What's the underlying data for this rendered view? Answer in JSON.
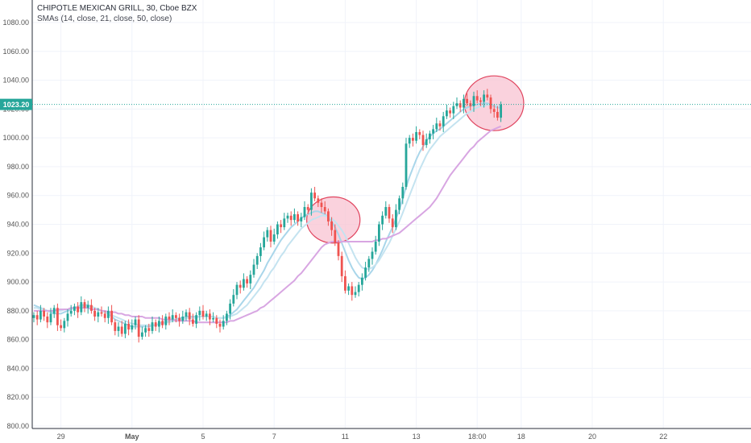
{
  "header": {
    "title": "CHIPOTLE MEXICAN GRILL, 30, Cboe BZX",
    "indicator": "SMAs (14, close, 21, close, 50, close)"
  },
  "last_price_label": "1023.20",
  "colors": {
    "up": "#26a69a",
    "down": "#ef5350",
    "sma14": "#a9d6ea",
    "sma21": "#c4e3f0",
    "sma50": "#d8a6e2",
    "price_line": "#26a69a",
    "highlight_fill": "#f8c3d2",
    "highlight_stroke": "#e0445e"
  },
  "chart_data": {
    "type": "line",
    "title": "CHIPOTLE MEXICAN GRILL, 30, Cboe BZX",
    "xlabel": "",
    "ylabel": "",
    "ylim": [
      798,
      1088
    ],
    "y_ticks": [
      "800.00",
      "820.00",
      "840.00",
      "860.00",
      "880.00",
      "900.00",
      "920.00",
      "940.00",
      "960.00",
      "980.00",
      "1000.00",
      "1020.00",
      "1040.00",
      "1060.00",
      "1080.00"
    ],
    "x_ticks": [
      {
        "label": "29",
        "bar": 8
      },
      {
        "label": "May",
        "bar": 29,
        "bold": true
      },
      {
        "label": "5",
        "bar": 50
      },
      {
        "label": "7",
        "bar": 71
      },
      {
        "label": "11",
        "bar": 92
      },
      {
        "label": "13",
        "bar": 113
      },
      {
        "label": "18:00",
        "bar": 131
      },
      {
        "label": "18",
        "bar": 144
      },
      {
        "label": "20",
        "bar": 165
      },
      {
        "label": "22",
        "bar": 186
      }
    ],
    "grid": true,
    "last_price": 1023.2,
    "close": [
      877,
      874,
      880,
      876,
      872,
      878,
      882,
      870,
      868,
      873,
      878,
      880,
      883,
      879,
      886,
      882,
      884,
      880,
      876,
      879,
      878,
      875,
      880,
      872,
      866,
      869,
      864,
      871,
      867,
      870,
      874,
      862,
      865,
      868,
      866,
      872,
      869,
      873,
      870,
      876,
      874,
      877,
      875,
      873,
      876,
      879,
      874,
      871,
      877,
      880,
      876,
      878,
      874,
      875,
      871,
      869,
      873,
      878,
      885,
      891,
      898,
      896,
      902,
      899,
      905,
      912,
      918,
      924,
      931,
      936,
      928,
      933,
      940,
      938,
      944,
      946,
      943,
      947,
      942,
      945,
      952,
      950,
      962,
      958,
      955,
      952,
      949,
      942,
      936,
      927,
      918,
      904,
      894,
      897,
      891,
      893,
      898,
      903,
      910,
      916,
      921,
      928,
      940,
      946,
      952,
      944,
      938,
      950,
      958,
      966,
      996,
      1000,
      998,
      1004,
      1002,
      995,
      999,
      1003,
      1006,
      1010,
      1008,
      1015,
      1019,
      1017,
      1022,
      1024,
      1021,
      1027,
      1024,
      1022,
      1029,
      1026,
      1025,
      1030,
      1028,
      1020,
      1018,
      1014,
      1023.2
    ],
    "range": [
      0,
      0,
      0,
      0,
      0,
      0,
      0,
      0,
      0,
      0,
      0,
      0,
      0,
      0,
      0,
      0,
      0,
      0,
      0,
      0,
      0,
      0,
      0,
      0,
      0,
      0,
      0,
      0,
      0,
      0,
      0,
      0,
      0,
      0,
      0,
      0,
      0,
      0,
      0,
      0,
      0,
      0,
      0,
      0,
      0,
      0,
      0,
      0,
      0,
      0,
      0,
      0,
      0,
      0,
      0,
      0,
      0,
      0,
      0,
      0,
      0,
      0,
      0,
      0,
      0,
      0,
      0,
      0,
      0,
      0,
      0,
      0,
      0,
      0,
      0,
      0,
      0,
      0,
      0,
      0,
      0,
      0,
      0,
      0,
      0,
      0,
      0,
      0,
      0,
      0,
      0,
      0,
      0,
      0,
      0,
      0,
      0,
      0,
      0,
      0,
      0,
      0,
      0,
      0,
      0,
      0,
      0,
      0,
      0,
      0,
      0,
      0,
      0,
      0,
      0,
      0,
      0,
      0,
      0,
      0,
      0,
      0,
      0,
      0,
      0,
      0,
      0,
      0,
      0,
      0,
      0,
      0,
      0,
      0,
      0,
      0,
      0,
      0,
      0
    ],
    "series": [
      {
        "name": "SMA 14",
        "values": [
          884,
          883,
          882,
          881,
          880,
          879,
          878,
          878,
          878,
          879,
          880,
          881,
          882,
          883,
          884,
          884,
          884,
          883,
          882,
          881,
          880,
          879,
          878,
          876,
          874,
          873,
          872,
          871,
          870,
          869,
          869,
          869,
          869,
          869,
          869,
          870,
          870,
          871,
          872,
          872,
          873,
          874,
          874,
          875,
          875,
          876,
          876,
          876,
          876,
          876,
          876,
          876,
          876,
          876,
          875,
          875,
          875,
          876,
          877,
          879,
          881,
          884,
          887,
          890,
          893,
          896,
          900,
          904,
          908,
          913,
          917,
          921,
          925,
          929,
          932,
          935,
          938,
          940,
          942,
          944,
          946,
          947,
          948,
          949,
          949,
          948,
          947,
          945,
          942,
          938,
          933,
          927,
          921,
          915,
          910,
          906,
          903,
          902,
          903,
          905,
          908,
          912,
          917,
          922,
          928,
          933,
          938,
          944,
          950,
          958,
          966,
          973,
          979,
          985,
          990,
          994,
          998,
          1001,
          1003,
          1005,
          1006,
          1008,
          1010,
          1012,
          1014,
          1016,
          1018,
          1020,
          1021,
          1022,
          1023,
          1023,
          1024,
          1024,
          1024,
          1023,
          1022,
          1021,
          1021
        ]
      },
      {
        "name": "SMA 21",
        "values": [
          882,
          882,
          881,
          881,
          880,
          880,
          880,
          880,
          880,
          881,
          881,
          882,
          882,
          883,
          883,
          883,
          883,
          883,
          882,
          881,
          880,
          879,
          878,
          877,
          876,
          875,
          874,
          873,
          872,
          871,
          871,
          870,
          870,
          870,
          870,
          870,
          870,
          871,
          871,
          872,
          872,
          873,
          873,
          874,
          874,
          875,
          875,
          875,
          875,
          876,
          876,
          876,
          876,
          876,
          875,
          875,
          875,
          875,
          876,
          877,
          878,
          880,
          882,
          884,
          887,
          890,
          893,
          896,
          900,
          903,
          907,
          910,
          914,
          918,
          921,
          925,
          928,
          931,
          934,
          937,
          939,
          941,
          943,
          944,
          945,
          946,
          946,
          945,
          944,
          942,
          939,
          936,
          932,
          927,
          922,
          917,
          913,
          910,
          909,
          909,
          910,
          912,
          915,
          919,
          923,
          927,
          932,
          937,
          942,
          948,
          954,
          960,
          966,
          972,
          978,
          983,
          988,
          992,
          995,
          998,
          1001,
          1003,
          1005,
          1007,
          1009,
          1011,
          1013,
          1015,
          1017,
          1018,
          1020,
          1021,
          1022,
          1022,
          1023,
          1023,
          1023,
          1022,
          1022
        ]
      },
      {
        "name": "SMA 50",
        "values": [
          880,
          880,
          880,
          880,
          880,
          880,
          880,
          881,
          881,
          881,
          881,
          882,
          882,
          882,
          882,
          882,
          882,
          881,
          881,
          881,
          880,
          880,
          879,
          879,
          879,
          878,
          878,
          877,
          877,
          876,
          876,
          876,
          876,
          875,
          875,
          875,
          875,
          875,
          874,
          874,
          874,
          874,
          873,
          873,
          873,
          873,
          873,
          873,
          872,
          872,
          872,
          872,
          872,
          872,
          872,
          872,
          872,
          872,
          873,
          873,
          874,
          875,
          876,
          877,
          878,
          879,
          880,
          882,
          883,
          885,
          887,
          889,
          891,
          893,
          895,
          897,
          899,
          901,
          904,
          906,
          909,
          912,
          915,
          918,
          921,
          924,
          926,
          927,
          928,
          928,
          928,
          928,
          928,
          928,
          928,
          928,
          928,
          928,
          928,
          928,
          928,
          929,
          929,
          930,
          930,
          931,
          932,
          933,
          934,
          936,
          938,
          940,
          942,
          944,
          946,
          948,
          950,
          952,
          955,
          958,
          962,
          966,
          970,
          974,
          977,
          980,
          983,
          986,
          989,
          992,
          994,
          997,
          999,
          1001,
          1003,
          1005,
          1006,
          1007,
          1008
        ]
      }
    ],
    "annotations": [
      {
        "type": "circle",
        "cx_bar": 88.5,
        "cy_value": 943,
        "rx_bars": 4.5,
        "ry_value": 16
      },
      {
        "type": "circle",
        "cx_bar": 136,
        "cy_value": 1024,
        "rx_bars": 5,
        "ry_value": 19
      }
    ]
  }
}
